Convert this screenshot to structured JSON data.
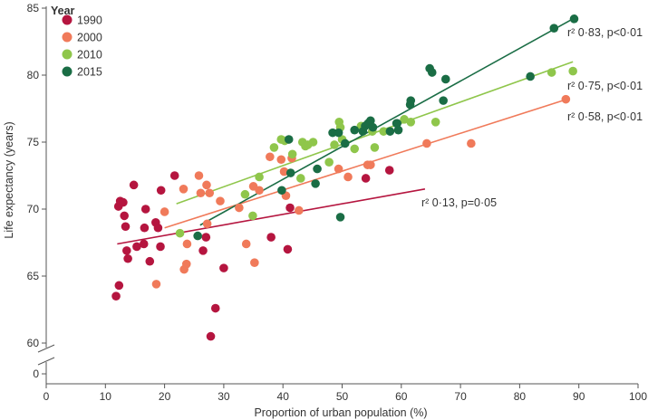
{
  "chart_data": {
    "type": "scatter",
    "title": "",
    "xlabel": "Proportion of urban population (%)",
    "ylabel": "Life expectancy (years)",
    "xlim": [
      0,
      100
    ],
    "ylim": [
      0,
      85
    ],
    "y_axis_break": [
      0,
      60
    ],
    "x_ticks": [
      0,
      10,
      20,
      30,
      40,
      50,
      60,
      70,
      80,
      90,
      100
    ],
    "y_ticks": [
      0,
      60,
      65,
      70,
      75,
      80,
      85
    ],
    "legend": {
      "title": "Year",
      "position": "top-left"
    },
    "series": [
      {
        "name": "1990",
        "color": "#b5153f",
        "points": [
          [
            11.8,
            63.5
          ],
          [
            12.3,
            64.3
          ],
          [
            12.2,
            70.2
          ],
          [
            12.5,
            70.6
          ],
          [
            13,
            70.5
          ],
          [
            13.2,
            69.5
          ],
          [
            13.4,
            68.7
          ],
          [
            13.6,
            66.9
          ],
          [
            13.8,
            66.3
          ],
          [
            14.8,
            71.8
          ],
          [
            15.3,
            67.2
          ],
          [
            16.5,
            67.4
          ],
          [
            16.6,
            68.6
          ],
          [
            16.8,
            70
          ],
          [
            17.5,
            66.1
          ],
          [
            18.5,
            69
          ],
          [
            18.9,
            68.6
          ],
          [
            19.3,
            67.2
          ],
          [
            19.4,
            71.4
          ],
          [
            21.7,
            72.5
          ],
          [
            26.5,
            66.9
          ],
          [
            27,
            67.9
          ],
          [
            27.8,
            60.5
          ],
          [
            28.6,
            62.6
          ],
          [
            30,
            65.6
          ],
          [
            38,
            67.9
          ],
          [
            40.8,
            67
          ],
          [
            41.2,
            70.1
          ],
          [
            54,
            72.3
          ],
          [
            58,
            72.9
          ]
        ],
        "trend": {
          "x": [
            12,
            64
          ],
          "y": [
            67.4,
            71.5
          ]
        },
        "annotation": "r² 0·13, p=0·05"
      },
      {
        "name": "2000",
        "color": "#f07a5a",
        "points": [
          [
            18.6,
            64.4
          ],
          [
            20,
            69.8
          ],
          [
            23.2,
            71.5
          ],
          [
            23.3,
            65.5
          ],
          [
            23.7,
            65.9
          ],
          [
            23.8,
            67.4
          ],
          [
            25.8,
            72.5
          ],
          [
            26.1,
            71.2
          ],
          [
            27.1,
            71.8
          ],
          [
            27.2,
            68.9
          ],
          [
            27.6,
            71.2
          ],
          [
            29.4,
            70.6
          ],
          [
            32.6,
            70.1
          ],
          [
            33.8,
            67.4
          ],
          [
            35,
            71.7
          ],
          [
            35.2,
            66
          ],
          [
            36,
            71.4
          ],
          [
            37.8,
            73.9
          ],
          [
            39.7,
            73.7
          ],
          [
            40.2,
            72.8
          ],
          [
            40.5,
            71
          ],
          [
            41.5,
            73.8
          ],
          [
            42.7,
            69.9
          ],
          [
            49.4,
            73
          ],
          [
            51,
            72.4
          ],
          [
            54.3,
            73.3
          ],
          [
            54.8,
            73.3
          ],
          [
            64.3,
            74.9
          ],
          [
            71.8,
            74.9
          ],
          [
            87.8,
            78.2
          ]
        ],
        "trend": {
          "x": [
            20,
            88
          ],
          "y": [
            68.6,
            78.2
          ]
        },
        "annotation": "r² 0·58, p<0·01"
      },
      {
        "name": "2010",
        "color": "#8fc64b",
        "points": [
          [
            22.6,
            68.2
          ],
          [
            33.6,
            71.1
          ],
          [
            34.9,
            69.5
          ],
          [
            36,
            72.4
          ],
          [
            38.5,
            74.6
          ],
          [
            39.7,
            75.2
          ],
          [
            40.3,
            75.1
          ],
          [
            41.6,
            74.1
          ],
          [
            43,
            72.3
          ],
          [
            43.3,
            75
          ],
          [
            43.8,
            74.7
          ],
          [
            44.2,
            74.8
          ],
          [
            45.1,
            75
          ],
          [
            47.8,
            73.5
          ],
          [
            48.7,
            74.8
          ],
          [
            49.5,
            76.5
          ],
          [
            49.7,
            76.1
          ],
          [
            50,
            75.2
          ],
          [
            52.1,
            74.5
          ],
          [
            53.2,
            76.2
          ],
          [
            53.8,
            76.2
          ],
          [
            55.1,
            75.8
          ],
          [
            55.5,
            74.6
          ],
          [
            57,
            75.8
          ],
          [
            60.5,
            76.7
          ],
          [
            61.6,
            76.5
          ],
          [
            65.8,
            76.5
          ],
          [
            85.4,
            80.2
          ],
          [
            89,
            80.3
          ]
        ],
        "trend": {
          "x": [
            22,
            89
          ],
          "y": [
            70.4,
            81
          ]
        },
        "annotation": "r² 0·75, p<0·01"
      },
      {
        "name": "2015",
        "color": "#1a6d45",
        "points": [
          [
            25.6,
            68
          ],
          [
            39.8,
            71.4
          ],
          [
            41,
            75.2
          ],
          [
            41.3,
            72.7
          ],
          [
            45.8,
            73
          ],
          [
            45.5,
            71.9
          ],
          [
            48.4,
            75.7
          ],
          [
            49.4,
            75.7
          ],
          [
            49.7,
            69.4
          ],
          [
            50.5,
            74.9
          ],
          [
            52.1,
            75.9
          ],
          [
            53.5,
            75.8
          ],
          [
            53.9,
            76.2
          ],
          [
            54.4,
            76.4
          ],
          [
            54.8,
            76.6
          ],
          [
            55.2,
            76.1
          ],
          [
            58.1,
            75.8
          ],
          [
            59.2,
            76.4
          ],
          [
            59.3,
            76.4
          ],
          [
            59.5,
            75.9
          ],
          [
            61.5,
            77.8
          ],
          [
            61.6,
            78.1
          ],
          [
            64.8,
            80.5
          ],
          [
            65.2,
            80.2
          ],
          [
            67.1,
            78.1
          ],
          [
            67.5,
            79.7
          ],
          [
            81.8,
            79.9
          ],
          [
            85.8,
            83.5
          ],
          [
            89.2,
            84.2
          ]
        ],
        "trend": {
          "x": [
            26,
            89
          ],
          "y": [
            68.8,
            84.2
          ]
        },
        "annotation": "r² 0·83, p<0·01"
      }
    ]
  }
}
